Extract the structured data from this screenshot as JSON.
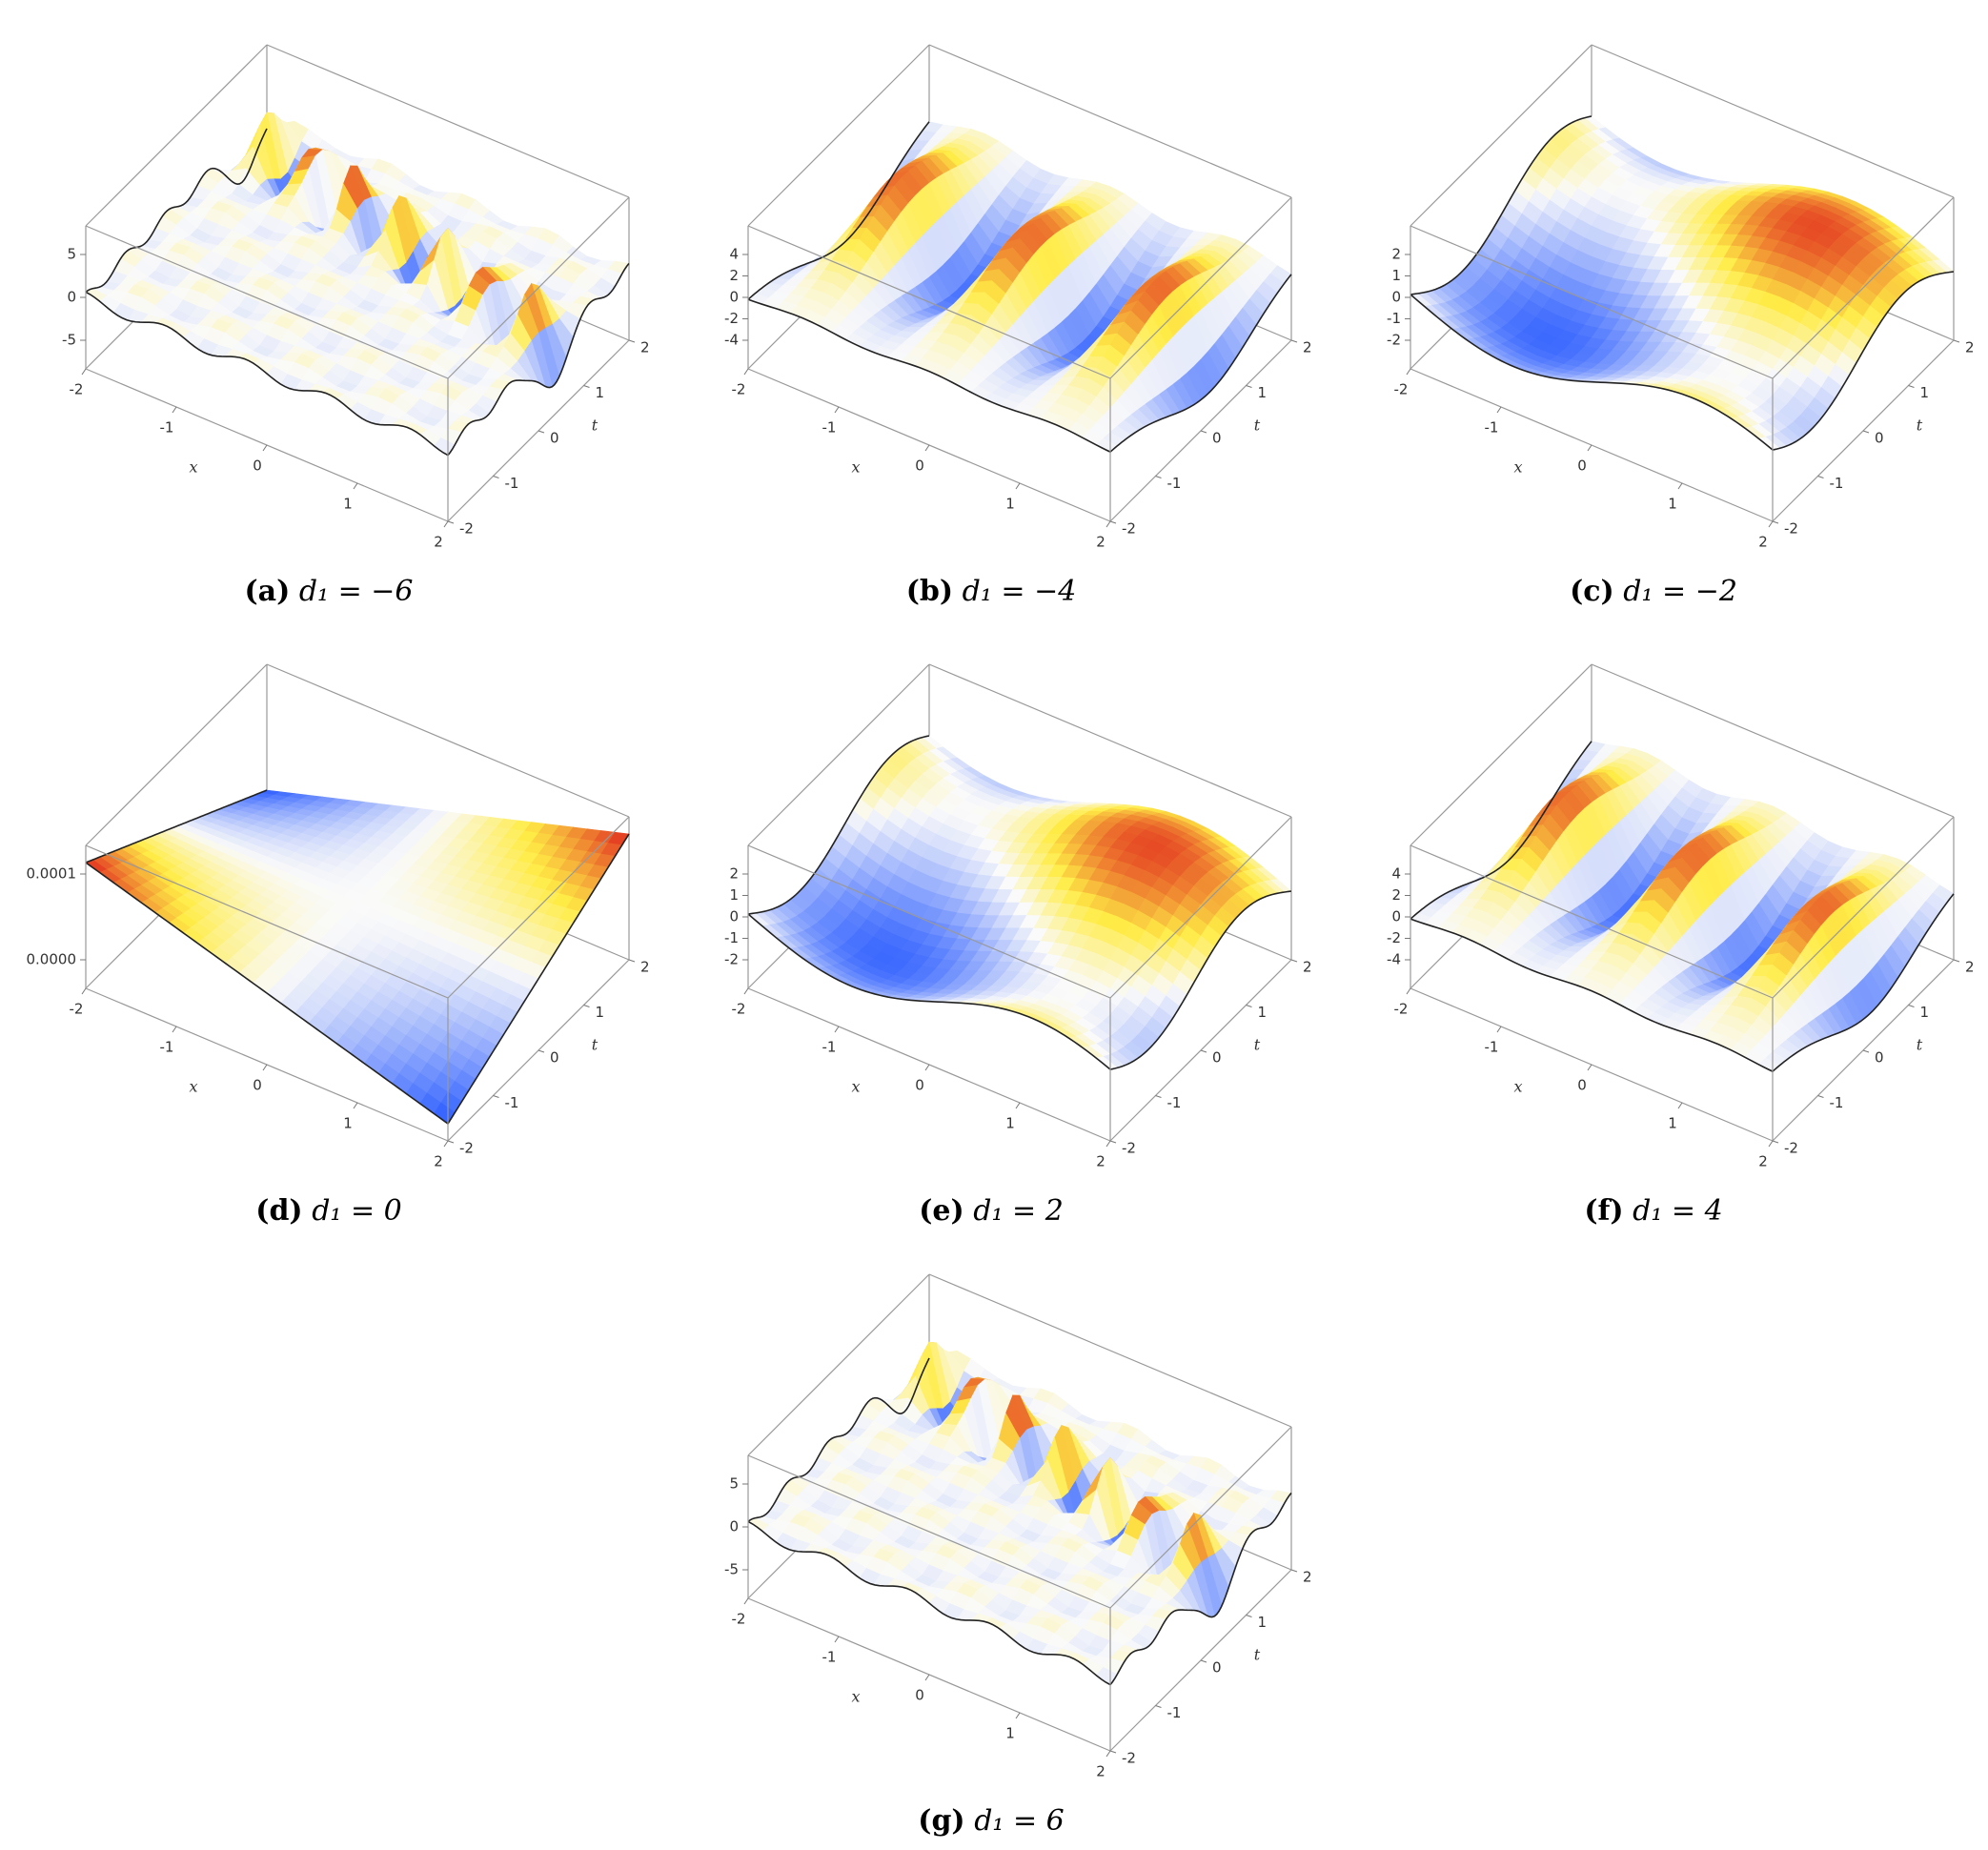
{
  "panels": [
    {
      "label": "(a)",
      "caption": "d₁ = −6",
      "x_label": "x",
      "t_label": "t",
      "x_ticks": [
        -2,
        -1,
        0,
        1,
        2
      ],
      "t_ticks": [
        -2,
        -1,
        0,
        1,
        2
      ],
      "z_ticks": [
        -5,
        0,
        5
      ]
    },
    {
      "label": "(b)",
      "caption": "d₁ = −4",
      "x_label": "x",
      "t_label": "t",
      "x_ticks": [
        -2,
        -1,
        0,
        1,
        2
      ],
      "t_ticks": [
        -2,
        -1,
        0,
        1,
        2
      ],
      "z_ticks": [
        -4,
        -2,
        0,
        2,
        4
      ]
    },
    {
      "label": "(c)",
      "caption": "d₁ = −2",
      "x_label": "x",
      "t_label": "t",
      "x_ticks": [
        -2,
        -1,
        0,
        1,
        2
      ],
      "t_ticks": [
        -2,
        -1,
        0,
        1,
        2
      ],
      "z_ticks": [
        -2,
        -1,
        0,
        1,
        2
      ]
    },
    {
      "label": "(d)",
      "caption": "d₁ = 0",
      "x_label": "x",
      "t_label": "t",
      "x_ticks": [
        -2,
        -1,
        0,
        1,
        2
      ],
      "t_ticks": [
        -2,
        -1,
        0,
        1,
        2
      ],
      "z_ticks": [
        {
          "value": 0,
          "label": "0.0000"
        },
        {
          "value": 0.0001,
          "label": "0.0001"
        }
      ]
    },
    {
      "label": "(e)",
      "caption": "d₁ = 2",
      "x_label": "x",
      "t_label": "t",
      "x_ticks": [
        -2,
        -1,
        0,
        1,
        2
      ],
      "t_ticks": [
        -2,
        -1,
        0,
        1,
        2
      ],
      "z_ticks": [
        -2,
        -1,
        0,
        1,
        2
      ]
    },
    {
      "label": "(f)",
      "caption": "d₁ = 4",
      "x_label": "x",
      "t_label": "t",
      "x_ticks": [
        -2,
        -1,
        0,
        1,
        2
      ],
      "t_ticks": [
        -2,
        -1,
        0,
        1,
        2
      ],
      "z_ticks": [
        -4,
        -2,
        0,
        2,
        4
      ]
    },
    {
      "label": "(g)",
      "caption": "d₁ = 6",
      "x_label": "x",
      "t_label": "t",
      "x_ticks": [
        -2,
        -1,
        0,
        1,
        2
      ],
      "t_ticks": [
        -2,
        -1,
        0,
        1,
        2
      ],
      "z_ticks": [
        -5,
        0,
        5
      ]
    }
  ]
}
